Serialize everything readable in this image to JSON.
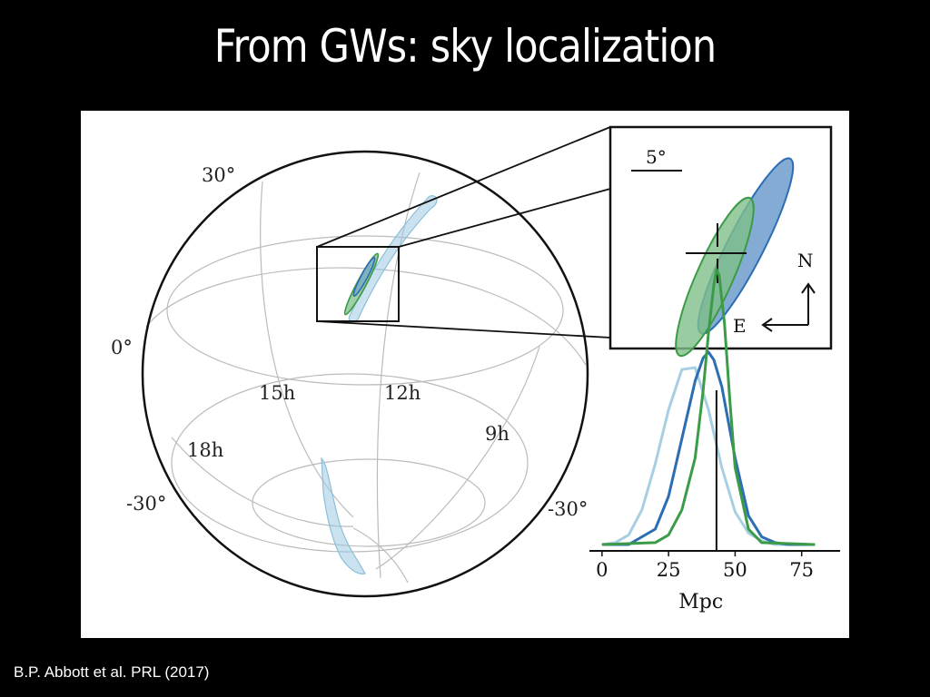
{
  "slide": {
    "title": "From GWs: sky localization",
    "citation": "B.P. Abbott et al. PRL (2017)"
  },
  "sky_map": {
    "dec_labels": [
      "30°",
      "0°",
      "-30°",
      "-30°"
    ],
    "ra_labels": [
      "15h",
      "12h",
      "9h",
      "18h"
    ]
  },
  "inset": {
    "scale_label": "5°",
    "north_label": "N",
    "east_label": "E"
  },
  "colors": {
    "light_blue": "#9fcbe2",
    "dark_blue": "#2c6eb3",
    "green": "#3c9b47",
    "grid": "#bbbbbb"
  },
  "chart_data": {
    "type": "line",
    "xlabel": "Mpc",
    "ylabel": "",
    "xticks": [
      0,
      25,
      50,
      75
    ],
    "xlim": [
      -2,
      85
    ],
    "marker_line": {
      "x": 43
    },
    "series": [
      {
        "color": "#a7cfe3",
        "x": [
          0,
          5,
          10,
          15,
          20,
          25,
          30,
          35,
          40,
          45,
          50,
          55,
          60,
          65,
          70,
          75,
          80
        ],
        "y": [
          0.0,
          0.01,
          0.05,
          0.18,
          0.42,
          0.7,
          0.91,
          0.92,
          0.7,
          0.4,
          0.17,
          0.06,
          0.02,
          0.0,
          0.0,
          0.0,
          0.0
        ]
      },
      {
        "color": "#2c6eb3",
        "x": [
          0,
          10,
          20,
          25,
          30,
          35,
          38,
          40,
          42,
          45,
          50,
          55,
          60,
          65,
          70,
          80
        ],
        "y": [
          0.0,
          0.0,
          0.08,
          0.25,
          0.55,
          0.85,
          0.97,
          1.0,
          0.96,
          0.82,
          0.45,
          0.15,
          0.04,
          0.01,
          0.0,
          0.0
        ]
      },
      {
        "color": "#3c9b47",
        "x": [
          0,
          20,
          25,
          30,
          35,
          38,
          40,
          42,
          43,
          44,
          46,
          48,
          50,
          55,
          60,
          80
        ],
        "y": [
          0.0,
          0.01,
          0.05,
          0.18,
          0.45,
          0.8,
          1.1,
          1.35,
          1.43,
          1.4,
          1.15,
          0.75,
          0.4,
          0.08,
          0.01,
          0.0
        ]
      }
    ]
  }
}
